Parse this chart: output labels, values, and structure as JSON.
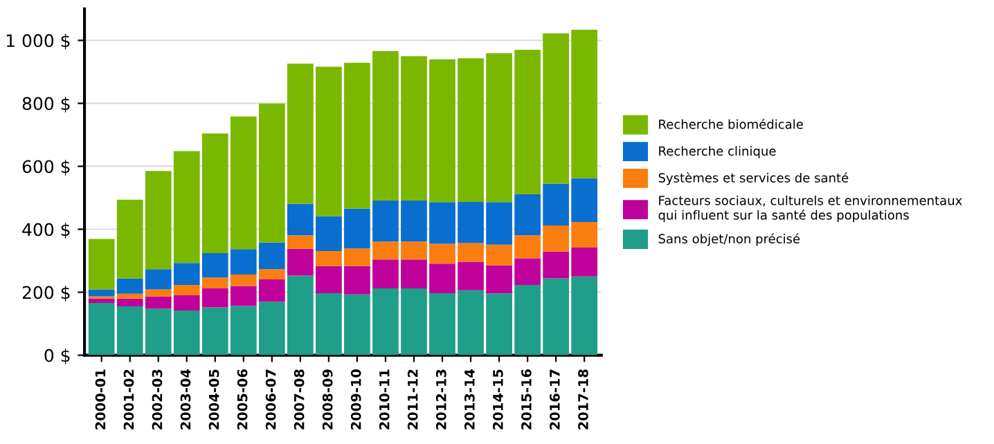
{
  "chart_data": {
    "type": "bar",
    "stacked": true,
    "categories": [
      "2000-01",
      "2001-02",
      "2002-03",
      "2003-04",
      "2004-05",
      "2005-06",
      "2006-07",
      "2007-08",
      "2008-09",
      "2009-10",
      "2010-11",
      "2011-12",
      "2012-13",
      "2013-14",
      "2014-15",
      "2015-16",
      "2016-17",
      "2017-18"
    ],
    "series": [
      {
        "name": "Sans objet/non précisé",
        "color": "#1f9e89",
        "values": [
          166,
          155,
          148,
          142,
          152,
          156,
          170,
          253,
          197,
          193,
          212,
          212,
          197,
          206,
          196,
          223,
          244,
          250
        ]
      },
      {
        "name": "Facteurs sociaux, culturels et environnementaux\nqui influent sur la santé des populations",
        "color": "#c0009a",
        "values": [
          14,
          25,
          39,
          48,
          60,
          64,
          71,
          85,
          86,
          90,
          92,
          92,
          94,
          91,
          89,
          85,
          85,
          92
        ]
      },
      {
        "name": "Systèmes et services de santé",
        "color": "#fb7d10",
        "values": [
          7,
          15,
          22,
          33,
          35,
          36,
          32,
          43,
          48,
          56,
          57,
          57,
          63,
          59,
          66,
          73,
          83,
          81
        ]
      },
      {
        "name": "Recherche clinique",
        "color": "#0a6ecf",
        "values": [
          22,
          49,
          64,
          70,
          77,
          81,
          85,
          100,
          111,
          127,
          130,
          130,
          132,
          131,
          135,
          130,
          133,
          139
        ]
      },
      {
        "name": "Recherche biomédicale",
        "color": "#7ab800",
        "values": [
          160,
          250,
          312,
          355,
          380,
          421,
          441,
          445,
          474,
          463,
          475,
          459,
          454,
          456,
          473,
          459,
          477,
          472
        ]
      }
    ],
    "ylim": [
      0,
      1100
    ],
    "yticks": [
      {
        "value": 0,
        "label": "0 $"
      },
      {
        "value": 200,
        "label": "200 $"
      },
      {
        "value": 400,
        "label": "400 $"
      },
      {
        "value": 600,
        "label": "600 $"
      },
      {
        "value": 800,
        "label": "800 $"
      },
      {
        "value": 1000,
        "label": "1 000 $"
      }
    ],
    "grid": "y",
    "legend": "right"
  }
}
